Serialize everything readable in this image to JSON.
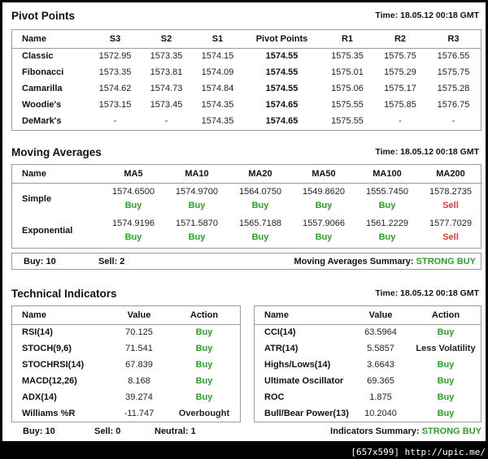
{
  "pivot": {
    "title": "Pivot Points",
    "time": "Time: 18.05.12 00:18 GMT",
    "columns": [
      "Name",
      "S3",
      "S2",
      "S1",
      "Pivot Points",
      "R1",
      "R2",
      "R3"
    ],
    "rows": [
      {
        "name": "Classic",
        "s3": "1572.95",
        "s2": "1573.35",
        "s1": "1574.15",
        "pp": "1574.55",
        "r1": "1575.35",
        "r2": "1575.75",
        "r3": "1576.55"
      },
      {
        "name": "Fibonacci",
        "s3": "1573.35",
        "s2": "1573.81",
        "s1": "1574.09",
        "pp": "1574.55",
        "r1": "1575.01",
        "r2": "1575.29",
        "r3": "1575.75"
      },
      {
        "name": "Camarilla",
        "s3": "1574.62",
        "s2": "1574.73",
        "s1": "1574.84",
        "pp": "1574.55",
        "r1": "1575.06",
        "r2": "1575.17",
        "r3": "1575.28"
      },
      {
        "name": "Woodie's",
        "s3": "1573.15",
        "s2": "1573.45",
        "s1": "1574.35",
        "pp": "1574.65",
        "r1": "1575.55",
        "r2": "1575.85",
        "r3": "1576.75"
      },
      {
        "name": "DeMark's",
        "s3": "-",
        "s2": "-",
        "s1": "1574.35",
        "pp": "1574.65",
        "r1": "1575.55",
        "r2": "-",
        "r3": "-"
      }
    ]
  },
  "ma": {
    "title": "Moving Averages",
    "time": "Time: 18.05.12 00:18 GMT",
    "columns": [
      "Name",
      "MA5",
      "MA10",
      "MA20",
      "MA50",
      "MA100",
      "MA200"
    ],
    "rows": [
      {
        "name": "Simple",
        "cells": [
          {
            "value": "1574.6500",
            "action": "Buy"
          },
          {
            "value": "1574.9700",
            "action": "Buy"
          },
          {
            "value": "1564.0750",
            "action": "Buy"
          },
          {
            "value": "1549.8620",
            "action": "Buy"
          },
          {
            "value": "1555.7450",
            "action": "Buy"
          },
          {
            "value": "1578.2735",
            "action": "Sell"
          }
        ]
      },
      {
        "name": "Exponential",
        "cells": [
          {
            "value": "1574.9196",
            "action": "Buy"
          },
          {
            "value": "1571.5870",
            "action": "Buy"
          },
          {
            "value": "1565.7188",
            "action": "Buy"
          },
          {
            "value": "1557.9066",
            "action": "Buy"
          },
          {
            "value": "1561.2229",
            "action": "Buy"
          },
          {
            "value": "1577.7029",
            "action": "Sell"
          }
        ]
      }
    ],
    "summary": {
      "buy": "Buy: 10",
      "sell": "Sell: 2",
      "label": "Moving Averages Summary:",
      "result": "STRONG BUY"
    }
  },
  "ti": {
    "title": "Technical Indicators",
    "time": "Time: 18.05.12 00:18 GMT",
    "columns": [
      "Name",
      "Value",
      "Action"
    ],
    "left": [
      {
        "name": "RSI(14)",
        "value": "70.125",
        "action": "Buy"
      },
      {
        "name": "STOCH(9,6)",
        "value": "71.541",
        "action": "Buy"
      },
      {
        "name": "STOCHRSI(14)",
        "value": "67.839",
        "action": "Buy"
      },
      {
        "name": "MACD(12,26)",
        "value": "8.168",
        "action": "Buy"
      },
      {
        "name": "ADX(14)",
        "value": "39.274",
        "action": "Buy"
      },
      {
        "name": "Williams %R",
        "value": "-11.747",
        "action": "Overbought"
      }
    ],
    "right": [
      {
        "name": "CCI(14)",
        "value": "63.5964",
        "action": "Buy"
      },
      {
        "name": "ATR(14)",
        "value": "5.5857",
        "action": "Less Volatility"
      },
      {
        "name": "Highs/Lows(14)",
        "value": "3.6643",
        "action": "Buy"
      },
      {
        "name": "Ultimate Oscillator",
        "value": "69.365",
        "action": "Buy"
      },
      {
        "name": "ROC",
        "value": "1.875",
        "action": "Buy"
      },
      {
        "name": "Bull/Bear Power(13)",
        "value": "10.2040",
        "action": "Buy"
      }
    ],
    "summary": {
      "buy": "Buy: 10",
      "sell": "Sell: 0",
      "neutral": "Neutral: 1",
      "label": "Indicators Summary:",
      "result": "STRONG BUY"
    }
  },
  "watermark": "[657x599] http://upic.me/",
  "colors": {
    "buy": "#2aa22a",
    "sell": "#e23b3b",
    "background": "#ffffff",
    "frame": "#000000"
  }
}
